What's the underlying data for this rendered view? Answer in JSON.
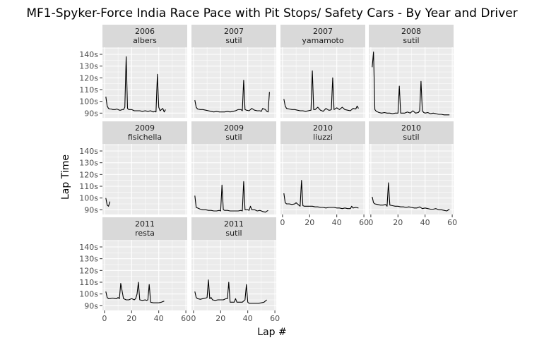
{
  "chart_data": {
    "type": "line",
    "title": "MF1-Spyker-Force India Race Pace with Pit Stops/ Safety Cars - By Year and Driver",
    "xlabel": "Lap #",
    "ylabel": "Lap Time",
    "x_ticks": [
      0,
      20,
      40,
      60
    ],
    "x_tick_labels": [
      "0",
      "20",
      "40",
      "60"
    ],
    "y_ticks": [
      90,
      100,
      110,
      120,
      130,
      140
    ],
    "y_tick_labels": [
      "90s",
      "100s",
      "110s",
      "120s",
      "130s",
      "140s"
    ],
    "xlim": [
      -1.5,
      61
    ],
    "ylim": [
      86,
      146
    ],
    "grid": true,
    "facets": [
      {
        "year": "2006",
        "driver": "albers",
        "x": [
          1,
          2,
          3,
          4,
          5,
          6,
          7,
          8,
          9,
          10,
          11,
          12,
          13,
          14,
          15,
          16,
          17,
          18,
          20,
          22,
          24,
          26,
          28,
          30,
          32,
          34,
          36,
          37,
          38,
          39,
          40,
          41,
          42,
          43,
          44,
          45
        ],
        "y": [
          104,
          96,
          94,
          93.5,
          93.5,
          93,
          93,
          93,
          93.5,
          93,
          92.5,
          92.5,
          93,
          93,
          95,
          138,
          94,
          93,
          93,
          92,
          92,
          92,
          91.5,
          92,
          91.5,
          92,
          91,
          91.5,
          91,
          123,
          95,
          92,
          93,
          94,
          91,
          93
        ]
      },
      {
        "year": "2007",
        "driver": "sutil",
        "x": [
          1,
          2,
          3,
          5,
          7,
          9,
          11,
          13,
          15,
          17,
          19,
          21,
          23,
          25,
          27,
          29,
          31,
          33,
          35,
          36,
          37,
          38,
          39,
          41,
          43,
          45,
          47,
          49,
          50,
          51,
          53,
          54,
          55,
          56
        ],
        "y": [
          101,
          95,
          93.5,
          93,
          93,
          92.5,
          92,
          91.5,
          91,
          91.5,
          91,
          91,
          91,
          91.5,
          91,
          91.5,
          92,
          93,
          93,
          92,
          118,
          93,
          92.5,
          92,
          94,
          92.5,
          92,
          92,
          91.5,
          94,
          93,
          91.5,
          91,
          108
        ]
      },
      {
        "year": "2007",
        "driver": "yamamoto",
        "x": [
          1,
          2,
          3,
          5,
          7,
          9,
          11,
          13,
          15,
          17,
          19,
          21,
          22,
          23,
          24,
          26,
          28,
          30,
          32,
          34,
          35,
          36,
          37,
          38,
          40,
          42,
          44,
          46,
          48,
          50,
          52,
          54,
          55,
          56
        ],
        "y": [
          102,
          96,
          94,
          93.5,
          93,
          93,
          92.5,
          92,
          92,
          91.5,
          92,
          92.5,
          126,
          93,
          93,
          95,
          92.5,
          91.5,
          94,
          92.5,
          92.5,
          93,
          120,
          93,
          94.5,
          93,
          95,
          93,
          92.5,
          92,
          94,
          93.5,
          96,
          94
        ]
      },
      {
        "year": "2008",
        "driver": "sutil",
        "x": [
          1,
          2,
          3,
          4,
          6,
          8,
          10,
          12,
          14,
          16,
          18,
          20,
          21,
          22,
          23,
          25,
          27,
          29,
          31,
          33,
          35,
          36,
          37,
          38,
          39,
          40,
          42,
          44,
          46,
          48,
          50,
          52,
          54,
          56,
          58
        ],
        "y": [
          129,
          142,
          93,
          91.5,
          90.5,
          90,
          90.5,
          90,
          90,
          89.5,
          90,
          90,
          113,
          90,
          90,
          90,
          91,
          90,
          92,
          90,
          90.5,
          92,
          117,
          92,
          90.5,
          90,
          90.5,
          89.5,
          90,
          89.5,
          89,
          89,
          88.5,
          88.5,
          88.5
        ]
      },
      {
        "year": "2009",
        "driver": "fisichella",
        "x": [
          1,
          2,
          3,
          4
        ],
        "y": [
          100,
          94,
          93,
          97
        ]
      },
      {
        "year": "2009",
        "driver": "sutil",
        "x": [
          1,
          2,
          3,
          5,
          7,
          9,
          11,
          13,
          15,
          17,
          19,
          20,
          21,
          22,
          23,
          25,
          27,
          29,
          31,
          33,
          35,
          36,
          37,
          38,
          40,
          41,
          42,
          43,
          45,
          47,
          49,
          51,
          53,
          55
        ],
        "y": [
          102,
          92,
          91.5,
          90.5,
          90,
          90,
          89.5,
          89.5,
          89,
          89,
          89.5,
          89,
          111,
          90,
          89.5,
          89.5,
          89,
          89,
          89,
          89,
          89.5,
          89,
          114,
          90,
          90,
          89.5,
          93,
          90,
          90,
          89,
          89.5,
          88.5,
          88,
          89.5
        ]
      },
      {
        "year": "2010",
        "driver": "liuzzi",
        "x": [
          1,
          2,
          3,
          5,
          7,
          9,
          10,
          11,
          12,
          13,
          14,
          15,
          16,
          18,
          20,
          22,
          24,
          26,
          28,
          30,
          32,
          34,
          36,
          38,
          40,
          42,
          44,
          46,
          48,
          50,
          51,
          52,
          54,
          56
        ],
        "y": [
          104,
          96,
          95,
          95,
          94.5,
          95,
          96,
          95,
          94,
          93,
          115,
          93.5,
          93,
          93,
          93,
          93,
          92.5,
          92.5,
          92,
          92,
          91.5,
          92,
          92,
          92,
          91.5,
          91.5,
          91,
          91.5,
          91,
          91,
          93,
          91.5,
          92,
          91.5
        ]
      },
      {
        "year": "2010",
        "driver": "sutil",
        "x": [
          1,
          2,
          3,
          5,
          7,
          9,
          11,
          12,
          13,
          14,
          16,
          18,
          20,
          22,
          24,
          26,
          28,
          30,
          32,
          34,
          36,
          38,
          40,
          42,
          44,
          46,
          48,
          50,
          52,
          54,
          56,
          58
        ],
        "y": [
          101,
          96,
          95,
          94.5,
          94,
          94,
          94.5,
          93,
          113,
          94,
          93.5,
          93,
          93,
          92.5,
          92.5,
          92,
          92.5,
          92,
          91.5,
          91.5,
          92.5,
          91,
          91.5,
          91,
          90.5,
          90.5,
          91,
          90,
          90,
          89.5,
          89,
          90.5
        ]
      },
      {
        "year": "2011",
        "driver": "resta",
        "x": [
          1,
          2,
          3,
          4,
          6,
          8,
          9,
          10,
          11,
          12,
          14,
          16,
          18,
          20,
          22,
          23,
          24,
          25,
          26,
          28,
          30,
          31,
          32,
          33,
          34,
          36,
          38,
          40,
          42,
          44
        ],
        "y": [
          102,
          97,
          96,
          96,
          96.5,
          96,
          96,
          97,
          96,
          109,
          96,
          95,
          95,
          96,
          95,
          96,
          100,
          110,
          95,
          94.5,
          95,
          94.5,
          95,
          108,
          93,
          92.5,
          92.5,
          92.5,
          93,
          94
        ]
      },
      {
        "year": "2011",
        "driver": "sutil",
        "x": [
          1,
          2,
          3,
          5,
          7,
          9,
          10,
          11,
          12,
          13,
          14,
          16,
          18,
          20,
          22,
          24,
          25,
          26,
          27,
          28,
          30,
          31,
          32,
          34,
          36,
          38,
          39,
          40,
          41,
          42,
          44,
          46,
          48,
          50,
          52,
          54
        ],
        "y": [
          102,
          97,
          96,
          95.5,
          96,
          96.5,
          97,
          112,
          96,
          97,
          95,
          94.5,
          95,
          95,
          95,
          96,
          96,
          110,
          93,
          93,
          93,
          96,
          93,
          93,
          93,
          95,
          108,
          93,
          92,
          92,
          92,
          92,
          92,
          92.5,
          93,
          95
        ]
      }
    ]
  }
}
